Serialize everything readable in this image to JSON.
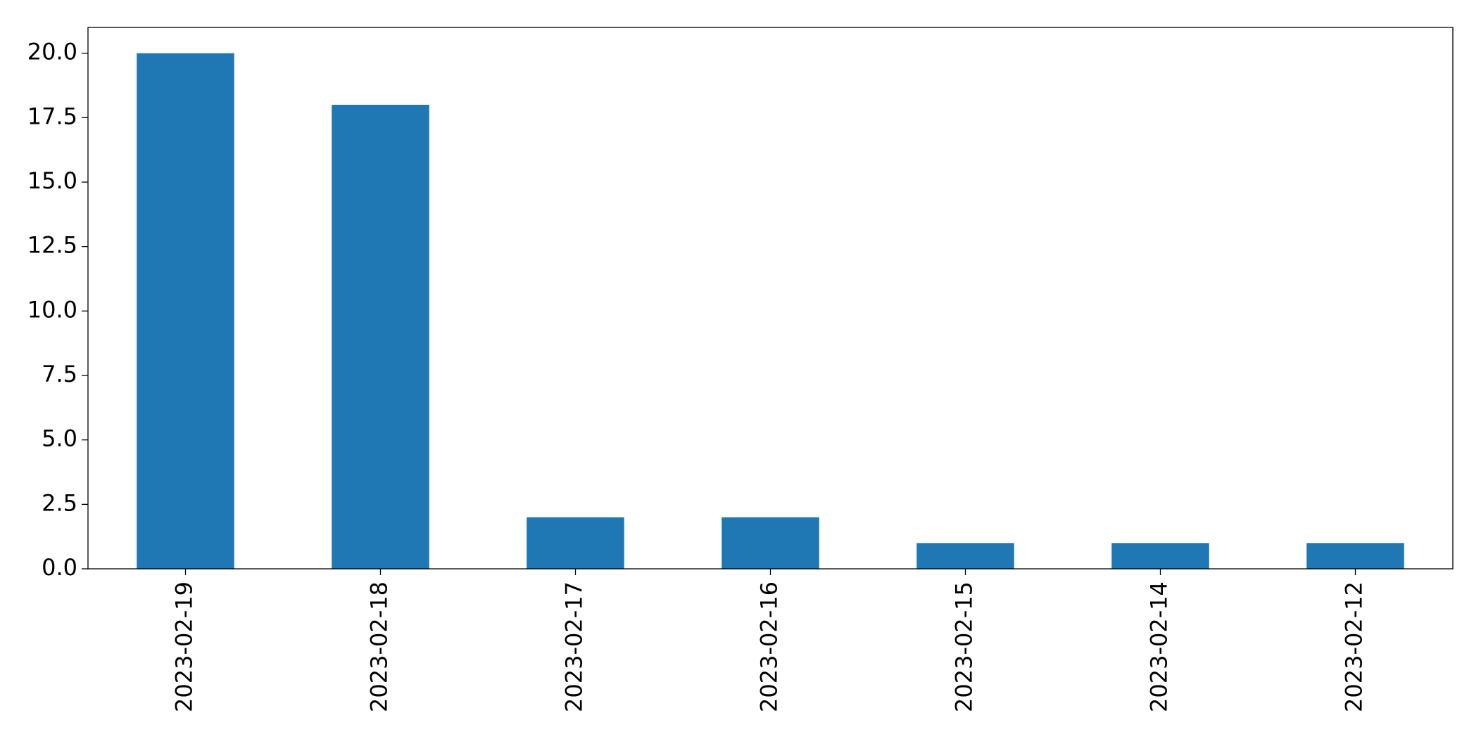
{
  "chart_data": {
    "type": "bar",
    "categories": [
      "2023-02-19",
      "2023-02-18",
      "2023-02-17",
      "2023-02-16",
      "2023-02-15",
      "2023-02-14",
      "2023-02-12"
    ],
    "values": [
      20,
      18,
      2,
      2,
      1,
      1,
      1
    ],
    "color": "#1f77b4",
    "ylim": [
      0,
      21
    ],
    "yticks": [
      {
        "value": 0,
        "label": "0.0"
      },
      2.5,
      {
        "value": 5,
        "label": "5.0"
      },
      7.5,
      {
        "value": 10,
        "label": "10.0"
      },
      12.5,
      {
        "value": 15,
        "label": "15.0"
      },
      17.5,
      {
        "value": 20,
        "label": "20.0"
      }
    ],
    "grid": false
  }
}
